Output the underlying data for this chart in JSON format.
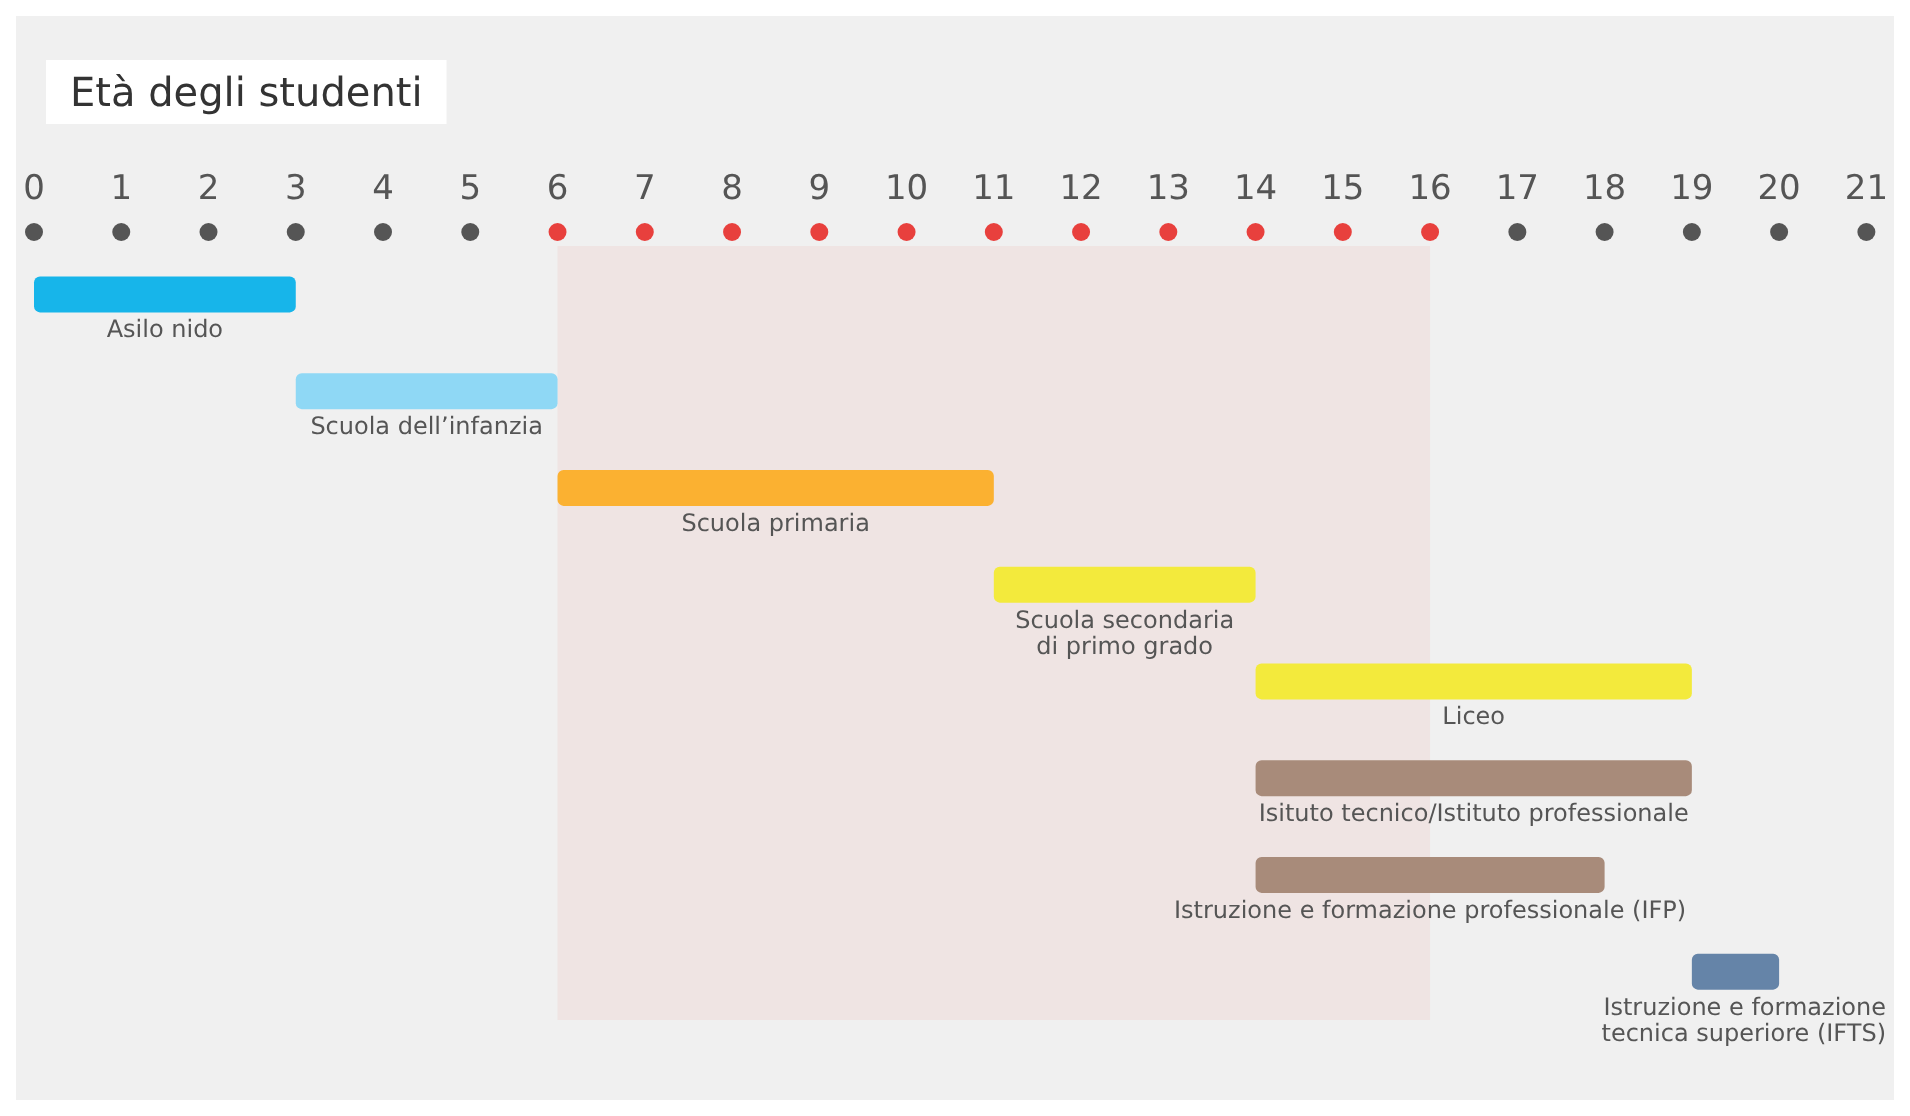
{
  "chart_data": {
    "type": "bar",
    "orientation": "horizontal",
    "title": "Età degli studenti",
    "categories": [
      null,
      null,
      null,
      null,
      null,
      null,
      null,
      null
    ],
    "xlim": [
      0,
      21
    ],
    "xticks": [
      0,
      1,
      2,
      3,
      4,
      5,
      6,
      7,
      8,
      9,
      10,
      11,
      12,
      13,
      14,
      15,
      16,
      17,
      18,
      19,
      20,
      21
    ],
    "tick_labels": "x",
    "grid": false,
    "bands": [
      {
        "axis": "x",
        "from": 6,
        "to": 16,
        "color": "#e8403d"
      }
    ],
    "values": [
      3,
      3,
      5,
      3,
      5,
      5,
      4,
      1
    ],
    "base": [
      0,
      3,
      6,
      11,
      14,
      14,
      14,
      19
    ],
    "colors": [
      "#17b5ea",
      "#8fd8f5",
      "#fbb131",
      "#f3ea3c",
      "#f3ea3c",
      "#a88b7a",
      "#a88b7a",
      "#6584a8"
    ],
    "annotations": [
      "Asilo nido",
      "Scuola dell’infanzia",
      "Scuola primaria",
      "Scuola secondaria\ndi primo grado",
      "Liceo",
      "Isituto tecnico/Istituto professionale",
      "Istruzione e formazione professionale (IFP)",
      "Istruzione e formazione\ntecnica superiore (IFTS)"
    ]
  }
}
